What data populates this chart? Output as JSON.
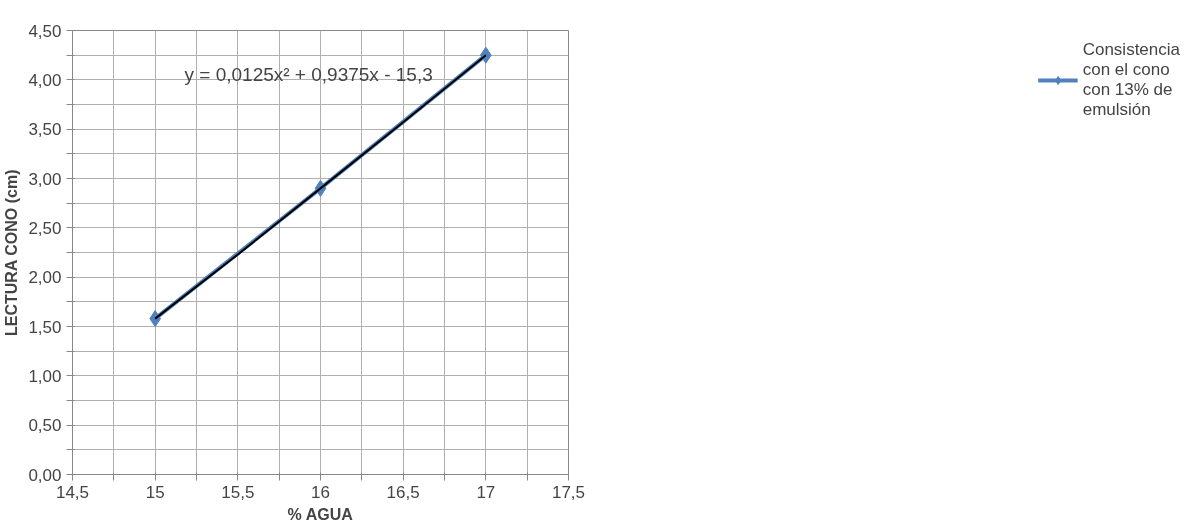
{
  "chart_data": {
    "type": "line",
    "xlabel": "% AGUA",
    "ylabel": "LECTURA CONO (cm)",
    "xlim": [
      14.5,
      17.5
    ],
    "xticks": [
      {
        "value": 14.5,
        "label": "14,5"
      },
      {
        "value": 14.75,
        "label": null
      },
      15,
      {
        "value": 15.25,
        "label": null
      },
      {
        "value": 15.5,
        "label": "15,5"
      },
      {
        "value": 15.75,
        "label": null
      },
      16,
      {
        "value": 16.25,
        "label": null
      },
      {
        "value": 16.5,
        "label": "16,5"
      },
      {
        "value": 16.75,
        "label": null
      },
      17,
      {
        "value": 17.25,
        "label": null
      },
      {
        "value": 17.5,
        "label": "17,5"
      }
    ],
    "ylim": [
      0,
      4.5
    ],
    "yticks": [
      {
        "value": 0,
        "label": "0,00"
      },
      {
        "value": 0.25,
        "label": null
      },
      {
        "value": 0.5,
        "label": "0,50"
      },
      {
        "value": 0.75,
        "label": null
      },
      {
        "value": 1,
        "label": "1,00"
      },
      {
        "value": 1.25,
        "label": null
      },
      {
        "value": 1.5,
        "label": "1,50"
      },
      {
        "value": 1.75,
        "label": null
      },
      {
        "value": 2,
        "label": "2,00"
      },
      {
        "value": 2.25,
        "label": null
      },
      {
        "value": 2.5,
        "label": "2,50"
      },
      {
        "value": 2.75,
        "label": null
      },
      {
        "value": 3,
        "label": "3,00"
      },
      {
        "value": 3.25,
        "label": null
      },
      {
        "value": 3.5,
        "label": "3,50"
      },
      {
        "value": 3.75,
        "label": null
      },
      {
        "value": 4,
        "label": "4,00"
      },
      {
        "value": 4.25,
        "label": null
      },
      {
        "value": 4.5,
        "label": "4,50"
      }
    ],
    "x": [
      15,
      16,
      17
    ],
    "series": [
      {
        "name": "Consistencia con el cono con 13% de emulsión",
        "color": "#4f81bd",
        "values": [
          1.58,
          2.9,
          4.25
        ],
        "marker": "diamond"
      },
      {
        "type": "line",
        "color": "#000000",
        "x": [
          15,
          15.5,
          16,
          16.5,
          17
        ],
        "values": [
          1.58,
          2.23,
          2.9,
          3.57,
          4.25
        ],
        "marker": "none"
      }
    ],
    "annotations": [
      "y = 0,0125x² + 0,9375x - 15,3"
    ],
    "grid": true,
    "legend": "right",
    "line_style": "solid"
  }
}
